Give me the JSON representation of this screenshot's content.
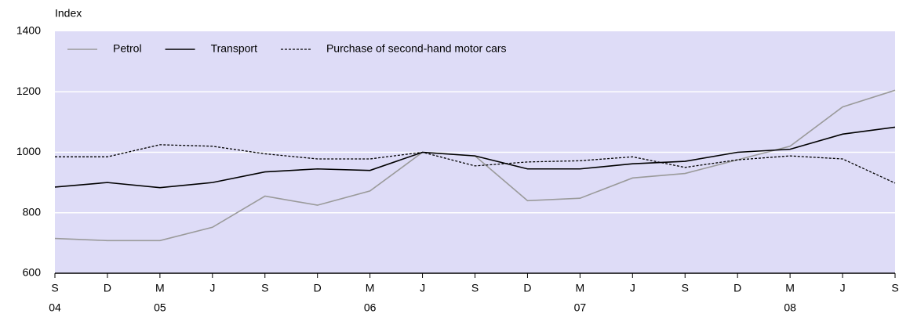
{
  "chart_data": {
    "type": "line",
    "y_label": "Index",
    "categories": [
      "S",
      "D",
      "M",
      "J",
      "S",
      "D",
      "M",
      "J",
      "S",
      "D",
      "M",
      "J",
      "S",
      "D",
      "M",
      "J",
      "S"
    ],
    "years": [
      "04",
      null,
      "05",
      null,
      null,
      null,
      "06",
      null,
      null,
      null,
      "07",
      null,
      null,
      null,
      "08",
      null,
      null
    ],
    "ylim": [
      600,
      1400
    ],
    "yticks": [
      600,
      800,
      1000,
      1200,
      1400
    ],
    "grid": true,
    "legend": "top-left",
    "series": [
      {
        "name": "Petrol",
        "color": "#9a9a9a",
        "dash": false,
        "values": [
          715,
          708,
          708,
          752,
          855,
          825,
          872,
          1000,
          988,
          840,
          848,
          915,
          930,
          975,
          1020,
          1150,
          1205
        ]
      },
      {
        "name": "Transport",
        "color": "#000000",
        "dash": false,
        "values": [
          885,
          900,
          883,
          900,
          935,
          945,
          940,
          1000,
          988,
          945,
          945,
          962,
          970,
          1000,
          1010,
          1060,
          1083
        ]
      },
      {
        "name": "Purchase of second-hand motor cars",
        "color": "#000000",
        "dash": true,
        "values": [
          985,
          985,
          1025,
          1020,
          995,
          978,
          978,
          1000,
          955,
          968,
          972,
          985,
          950,
          975,
          988,
          978,
          898
        ]
      }
    ]
  }
}
